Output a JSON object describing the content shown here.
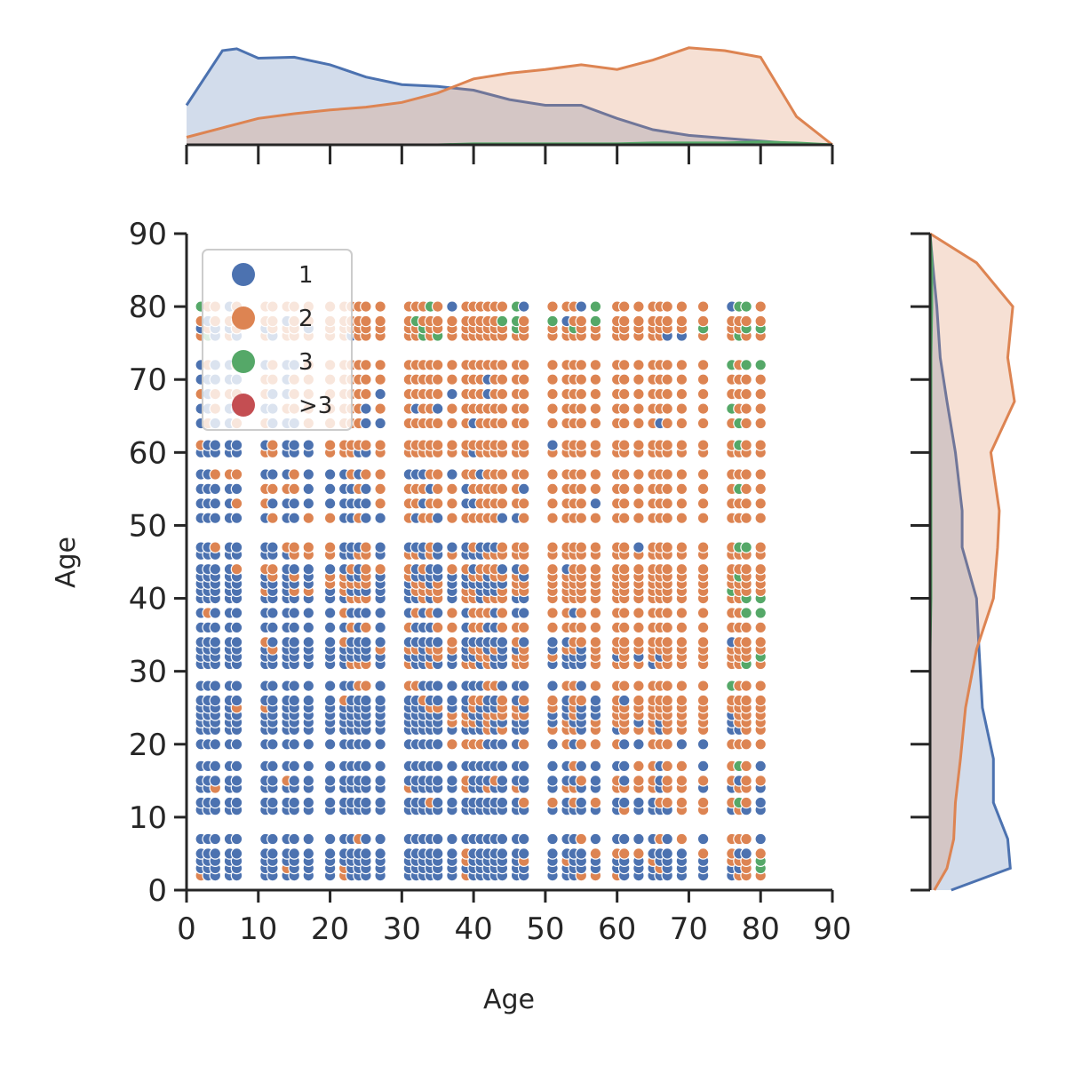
{
  "chart_data": {
    "type": "scatter",
    "title": "",
    "xlabel": "Age",
    "ylabel": "Age",
    "xlim": [
      0,
      90
    ],
    "ylim": [
      0,
      90
    ],
    "xticks": [
      "0",
      "10",
      "20",
      "30",
      "40",
      "50",
      "60",
      "70",
      "80",
      "90"
    ],
    "yticks": [
      "0",
      "10",
      "20",
      "30",
      "40",
      "50",
      "60",
      "70",
      "80",
      "90"
    ],
    "grid": false,
    "legend": {
      "placement": "top-left",
      "entries": [
        {
          "label": "1",
          "color": "#4c72b0"
        },
        {
          "label": "2",
          "color": "#dd8452"
        },
        {
          "label": "3",
          "color": "#55a868"
        },
        {
          "label": ">3",
          "color": "#c44e52"
        }
      ]
    },
    "x_age_columns": [
      2,
      3,
      4,
      6,
      7,
      11,
      12,
      14,
      15,
      17,
      20,
      22,
      23,
      24,
      25,
      27,
      31,
      32,
      33,
      34,
      35,
      37,
      39,
      40,
      41,
      42,
      43,
      44,
      46,
      47,
      51,
      53,
      54,
      55,
      57,
      60,
      61,
      63,
      65,
      66,
      67,
      69,
      72,
      76,
      77,
      78,
      80
    ],
    "y_age_rows": [
      2,
      3,
      4,
      5,
      7,
      11,
      12,
      14,
      15,
      17,
      20,
      22,
      23,
      24,
      25,
      26,
      28,
      31,
      32,
      33,
      34,
      36,
      38,
      40,
      41,
      42,
      43,
      44,
      46,
      47,
      51,
      53,
      55,
      57,
      60,
      61,
      64,
      66,
      68,
      70,
      72,
      76,
      77,
      78,
      80
    ],
    "series_colors": {
      "1": "#4c72b0",
      "2": "#dd8452",
      "3": "#55a868",
      ">3": "#c44e52"
    },
    "marginal_x_density": {
      "x": [
        0,
        5,
        7,
        10,
        15,
        20,
        25,
        30,
        35,
        40,
        45,
        50,
        55,
        60,
        65,
        70,
        75,
        80,
        85,
        90
      ],
      "1": [
        0.42,
        1.0,
        1.02,
        0.92,
        0.93,
        0.85,
        0.72,
        0.64,
        0.62,
        0.58,
        0.48,
        0.42,
        0.42,
        0.28,
        0.16,
        0.1,
        0.07,
        0.04,
        0.01,
        0.0
      ],
      "2": [
        0.08,
        0.18,
        0.22,
        0.28,
        0.33,
        0.37,
        0.4,
        0.45,
        0.55,
        0.7,
        0.76,
        0.8,
        0.85,
        0.8,
        0.9,
        1.03,
        1.0,
        0.93,
        0.3,
        0.0
      ],
      "3": [
        0.0,
        0.0,
        0.0,
        0.0,
        0.0,
        0.0,
        0.0,
        0.0,
        0.0,
        0.01,
        0.01,
        0.01,
        0.01,
        0.01,
        0.02,
        0.02,
        0.02,
        0.03,
        0.02,
        0.0
      ]
    },
    "marginal_y_density": {
      "y": [
        0,
        3,
        7,
        12,
        18,
        25,
        33,
        40,
        47,
        52,
        60,
        67,
        73,
        80,
        86,
        90
      ],
      "1": [
        0.25,
        0.95,
        0.92,
        0.75,
        0.75,
        0.62,
        0.58,
        0.55,
        0.38,
        0.38,
        0.3,
        0.2,
        0.12,
        0.08,
        0.03,
        0.0
      ],
      "2": [
        0.05,
        0.2,
        0.28,
        0.3,
        0.36,
        0.42,
        0.55,
        0.75,
        0.8,
        0.82,
        0.72,
        1.0,
        0.92,
        0.98,
        0.55,
        0.0
      ],
      "3": [
        0.0,
        0.0,
        0.0,
        0.0,
        0.0,
        0.0,
        0.0,
        0.01,
        0.01,
        0.01,
        0.01,
        0.01,
        0.01,
        0.02,
        0.02,
        0.0
      ]
    }
  }
}
